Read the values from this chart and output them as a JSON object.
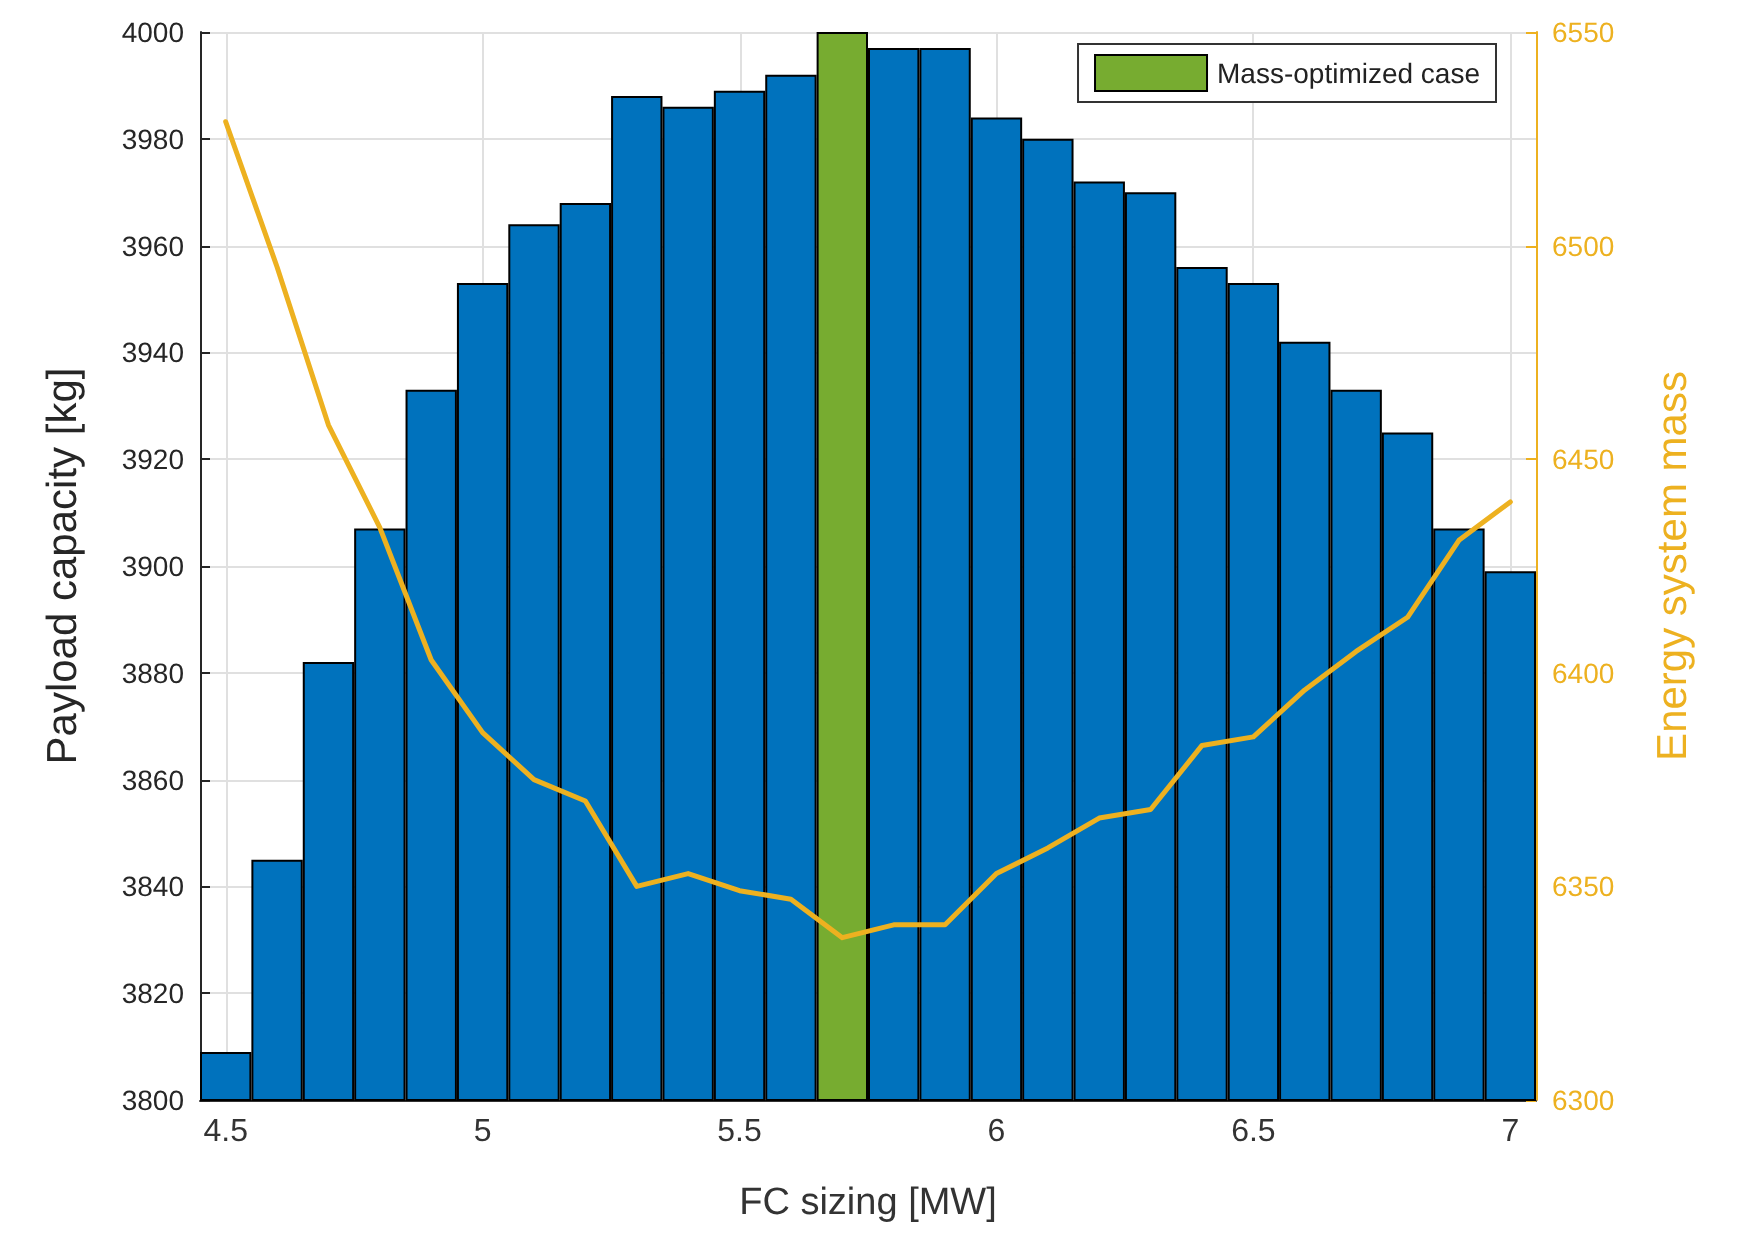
{
  "chart_data": {
    "type": "bar",
    "xlabel": "FC sizing [MW]",
    "ylabel": "Payload capacity [kg]",
    "y2label": "Energy system mass",
    "x": [
      4.5,
      4.6,
      4.7,
      4.8,
      4.9,
      5.0,
      5.1,
      5.2,
      5.3,
      5.4,
      5.5,
      5.6,
      5.7,
      5.8,
      5.9,
      6.0,
      6.1,
      6.2,
      6.3,
      6.4,
      6.5,
      6.6,
      6.7,
      6.8,
      6.9,
      7.0
    ],
    "series": [
      {
        "color": "#0072bd",
        "values": [
          3809,
          3845,
          3882,
          3907,
          3933,
          3953,
          3964,
          3968,
          3988,
          3986,
          3989,
          3992,
          null,
          3997,
          3997,
          3984,
          3980,
          3972,
          3970,
          3956,
          3953,
          3942,
          3933,
          3925,
          3907,
          3899
        ]
      },
      {
        "name": "Mass-optimized case",
        "color": "#77ac30",
        "values": [
          null,
          null,
          null,
          null,
          null,
          null,
          null,
          null,
          null,
          null,
          null,
          null,
          4000,
          null,
          null,
          null,
          null,
          null,
          null,
          null,
          null,
          null,
          null,
          null,
          null,
          null
        ]
      },
      {
        "type": "line",
        "axis": "y2",
        "color": "#edb120",
        "values": [
          6529,
          6495,
          6458,
          6434,
          6403,
          6386,
          6375,
          6370,
          6350,
          6353,
          6349,
          6347,
          6338,
          6341,
          6341,
          6353,
          6359,
          6366,
          6368,
          6383,
          6385,
          6396,
          6405,
          6413,
          6431,
          6440
        ]
      }
    ],
    "xlim": [
      4.45,
      7.05
    ],
    "xticks": [
      4.5,
      5,
      5.5,
      6,
      6.5,
      7
    ],
    "ylim": [
      3800,
      4000
    ],
    "yticks": [
      3800,
      3820,
      3840,
      3860,
      3880,
      3900,
      3920,
      3940,
      3960,
      3980,
      4000
    ],
    "y2lim": [
      6300,
      6550
    ],
    "y2ticks": [
      6300,
      6350,
      6400,
      6450,
      6500,
      6550
    ],
    "grid": true,
    "legend": "top right"
  }
}
